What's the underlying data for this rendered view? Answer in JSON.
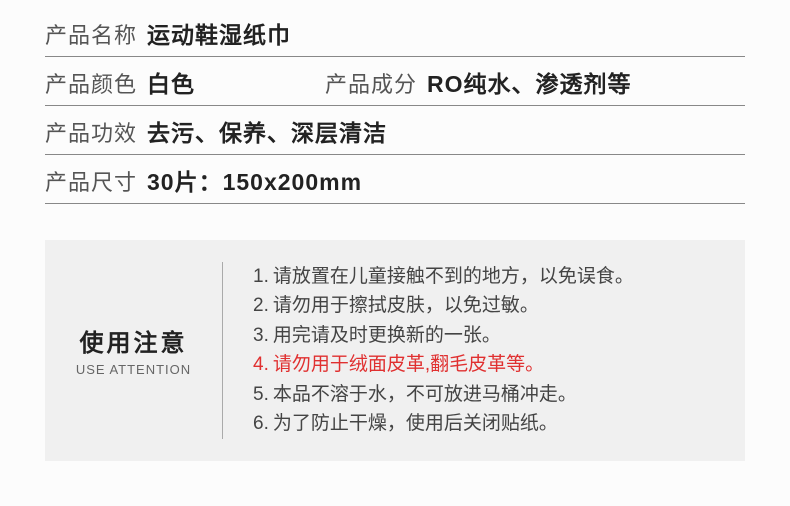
{
  "specs": {
    "name_label": "产品名称",
    "name_value": "运动鞋湿纸巾",
    "color_label": "产品颜色",
    "color_value": "白色",
    "ingredient_label": "产品成分",
    "ingredient_value": "RO纯水、渗透剂等",
    "effect_label": "产品功效",
    "effect_value": "去污、保养、深层清洁",
    "size_label": "产品尺寸",
    "size_value": "30片：150x200mm"
  },
  "attention": {
    "title_cn": "使用注意",
    "title_en": "USE ATTENTION",
    "items": [
      {
        "num": "1.",
        "text": "请放置在儿童接触不到的地方，以免误食。",
        "highlight": false
      },
      {
        "num": "2.",
        "text": "请勿用于擦拭皮肤，以免过敏。",
        "highlight": false
      },
      {
        "num": "3.",
        "text": "用完请及时更换新的一张。",
        "highlight": false
      },
      {
        "num": "4.",
        "text": "请勿用于绒面皮革,翻毛皮革等。",
        "highlight": true
      },
      {
        "num": "5.",
        "text": "本品不溶于水，不可放进马桶冲走。",
        "highlight": false
      },
      {
        "num": "6.",
        "text": "为了防止干燥，使用后关闭贴纸。",
        "highlight": false
      }
    ]
  },
  "colors": {
    "border": "#888888",
    "highlight": "#e03030",
    "box_bg": "#f0f0f0",
    "text": "#333333"
  }
}
